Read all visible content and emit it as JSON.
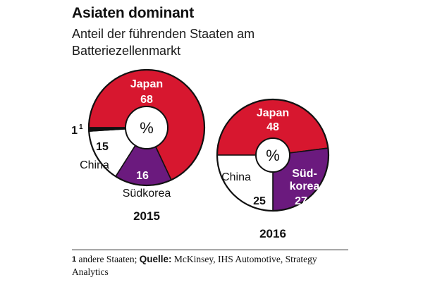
{
  "header": {
    "title": "Asiaten dominant",
    "subtitle": "Anteil der führenden Staaten am Batteriezellenmarkt"
  },
  "center_label": "%",
  "colors": {
    "japan": "#d7172f",
    "suedkorea": "#6b1a7e",
    "china": "#ffffff",
    "andere": "#111111",
    "outline": "#111111"
  },
  "chart_data": [
    {
      "type": "pie",
      "title": "2015",
      "unit": "%",
      "slices": [
        {
          "name": "Japan",
          "value": 68,
          "value_label": "68",
          "color": "#d7172f"
        },
        {
          "name": "Südkorea",
          "value": 16,
          "value_label": "16",
          "color": "#6b1a7e"
        },
        {
          "name": "China",
          "value": 15,
          "value_label": "15",
          "color": "#ffffff"
        },
        {
          "name": "",
          "value": 1,
          "value_label": "1",
          "footnote_mark": "1",
          "color": "#111111"
        }
      ]
    },
    {
      "type": "pie",
      "title": "2016",
      "unit": "%",
      "slices": [
        {
          "name": "Japan",
          "value": 48,
          "value_label": "48",
          "color": "#d7172f"
        },
        {
          "name": "Süd-\nkorea",
          "value": 27,
          "value_label": "27",
          "color": "#6b1a7e"
        },
        {
          "name": "China",
          "value": 25,
          "value_label": "25",
          "color": "#ffffff"
        }
      ]
    }
  ],
  "footer": {
    "footnote_number": "1",
    "footnote_text": " andere Staaten; ",
    "source_label": "Quelle:",
    "source_text": " McKinsey, IHS Automotive, Strategy Analytics"
  }
}
